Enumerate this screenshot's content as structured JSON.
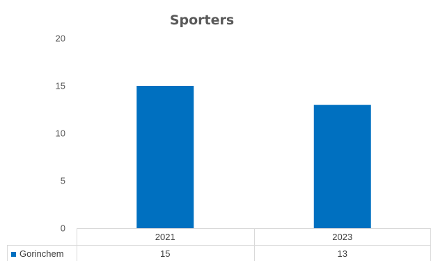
{
  "chart_data": {
    "type": "bar",
    "title": "Sporters",
    "categories": [
      "2021",
      "2023"
    ],
    "series": [
      {
        "name": "Gorinchem",
        "values": [
          15,
          13
        ],
        "color": "#0070C0"
      }
    ],
    "ylim": [
      0,
      20
    ],
    "yticks": [
      0,
      5,
      10,
      15,
      20
    ],
    "grid": false,
    "legend": "data-table",
    "data_table": true
  }
}
